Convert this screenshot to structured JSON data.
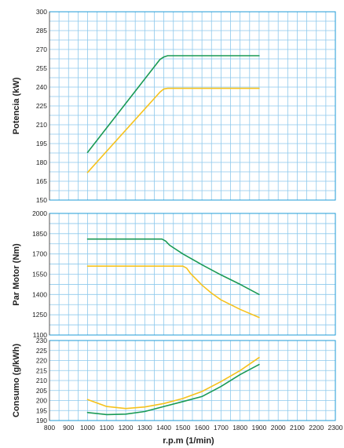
{
  "colors": {
    "grid": "#8ec9ec",
    "frame": "#1f9bd7",
    "series_green": "#1a9a55",
    "series_yellow": "#f6c21c"
  },
  "chart_data": [
    {
      "type": "line",
      "ylabel": "Potencia (kW)",
      "xlim": [
        800,
        2300
      ],
      "ylim": [
        150,
        300
      ],
      "y_ticks": [
        150,
        165,
        180,
        195,
        210,
        225,
        240,
        255,
        270,
        285,
        300
      ],
      "grid": true,
      "series": [
        {
          "color": "green",
          "x": [
            1000,
            1380,
            1400,
            1420,
            1900
          ],
          "y": [
            188,
            262,
            264,
            265,
            265
          ]
        },
        {
          "color": "yellow",
          "x": [
            1000,
            1380,
            1400,
            1420,
            1900
          ],
          "y": [
            172,
            236,
            238.5,
            239,
            239
          ]
        }
      ]
    },
    {
      "type": "line",
      "ylabel": "Par Motor (Nm)",
      "xlim": [
        800,
        2300
      ],
      "ylim": [
        1100,
        2000
      ],
      "y_ticks": [
        1100,
        1250,
        1400,
        1550,
        1700,
        1850,
        2000
      ],
      "grid": true,
      "series": [
        {
          "color": "green",
          "x": [
            1000,
            1390,
            1410,
            1430,
            1500,
            1600,
            1700,
            1800,
            1900
          ],
          "y": [
            1810,
            1810,
            1795,
            1765,
            1700,
            1620,
            1545,
            1475,
            1400
          ]
        },
        {
          "color": "yellow",
          "x": [
            1000,
            1500,
            1520,
            1540,
            1600,
            1650,
            1700,
            1800,
            1900
          ],
          "y": [
            1610,
            1610,
            1595,
            1555,
            1470,
            1410,
            1360,
            1290,
            1230
          ]
        }
      ]
    },
    {
      "type": "line",
      "xlabel": "r.p.m (1/min)",
      "ylabel": "Consumo (g/kWh)",
      "xlim": [
        800,
        2300
      ],
      "ylim": [
        190,
        230
      ],
      "x_ticks": [
        800,
        900,
        1000,
        1100,
        1200,
        1300,
        1400,
        1500,
        1600,
        1700,
        1800,
        1900,
        2000,
        2100,
        2200,
        2300
      ],
      "y_ticks": [
        190,
        195,
        200,
        205,
        210,
        215,
        220,
        225,
        230
      ],
      "grid": true,
      "series": [
        {
          "color": "green",
          "x": [
            1000,
            1100,
            1200,
            1300,
            1400,
            1500,
            1600,
            1700,
            1800,
            1900
          ],
          "y": [
            194,
            193,
            193.2,
            194.5,
            197,
            199.5,
            202,
            207,
            213,
            218
          ]
        },
        {
          "color": "yellow",
          "x": [
            1000,
            1100,
            1200,
            1300,
            1400,
            1500,
            1600,
            1700,
            1800,
            1900
          ],
          "y": [
            200.5,
            197,
            196,
            196.8,
            198.5,
            201,
            204.5,
            209.5,
            215,
            221.5
          ]
        }
      ]
    }
  ]
}
